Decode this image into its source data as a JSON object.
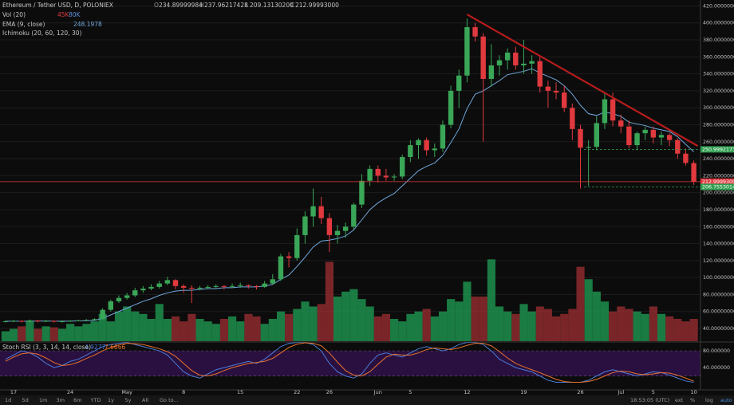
{
  "chart_data": [
    {
      "type": "candlestick",
      "title": "Ethereum / Tether USD, D, POLONIEX",
      "ohlc_labels": [
        [
          "O",
          "234.89999984"
        ],
        [
          "H",
          "237.96217428"
        ],
        [
          "L",
          "209.13130200"
        ],
        [
          "C",
          "212.99993000"
        ]
      ],
      "categories": [
        null,
        "17",
        null,
        null,
        null,
        null,
        null,
        null,
        "24",
        null,
        null,
        null,
        null,
        null,
        null,
        "May",
        null,
        null,
        null,
        null,
        null,
        null,
        "8",
        null,
        null,
        null,
        null,
        null,
        null,
        "15",
        null,
        null,
        null,
        null,
        null,
        null,
        "22",
        null,
        null,
        null,
        "26",
        null,
        null,
        null,
        null,
        null,
        "Jun",
        null,
        null,
        null,
        "5",
        null,
        null,
        null,
        null,
        null,
        null,
        "12",
        null,
        null,
        null,
        null,
        null,
        null,
        "19",
        null,
        null,
        null,
        null,
        null,
        null,
        "26",
        null,
        null,
        null,
        null,
        "Jul",
        null,
        null,
        null,
        "5",
        null,
        null,
        null,
        null,
        "10"
      ],
      "open": [
        48,
        48.5,
        49,
        48,
        49.5,
        48.5,
        49,
        48,
        48.5,
        49,
        49.5,
        50,
        51,
        62,
        72,
        76,
        79,
        85,
        87,
        89,
        93,
        97,
        90,
        88,
        87,
        88,
        89,
        90,
        89,
        90,
        91,
        90,
        89,
        93,
        98,
        125,
        123,
        150,
        172,
        184,
        170,
        150,
        155,
        160,
        186,
        214,
        228,
        220,
        218,
        219,
        242,
        256,
        262,
        250,
        252,
        280,
        320,
        338,
        395,
        384,
        334,
        350,
        356,
        365,
        350,
        352,
        355,
        325,
        320,
        318,
        300,
        275,
        253,
        254,
        282,
        310,
        285,
        278,
        256,
        270,
        274,
        265,
        268,
        262,
        246,
        234.89999984
      ],
      "high": [
        49.5,
        50,
        49.5,
        50.5,
        50,
        50,
        49.5,
        49.5,
        50,
        50.5,
        51,
        52,
        64,
        74,
        79,
        82,
        88,
        90,
        92,
        96,
        101,
        98,
        92,
        91,
        90,
        91,
        92,
        91,
        93,
        94,
        92,
        91,
        96,
        104,
        128,
        130,
        158,
        178,
        205,
        195,
        176,
        162,
        165,
        188,
        222,
        232,
        232,
        228,
        222,
        245,
        262,
        264,
        265,
        258,
        285,
        326,
        345,
        405,
        400,
        388,
        375,
        362,
        370,
        372,
        380,
        362,
        360,
        332,
        330,
        326,
        305,
        280,
        262,
        290,
        318,
        318,
        292,
        285,
        272,
        278,
        278,
        272,
        270,
        264,
        252,
        237.96217428
      ],
      "low": [
        47,
        47.5,
        47,
        47.5,
        47,
        47.5,
        47,
        47,
        48,
        48.5,
        49,
        49.5,
        50.5,
        60,
        70,
        74,
        77,
        82,
        85,
        87,
        91,
        86,
        82,
        70,
        85,
        86,
        87,
        86,
        88,
        88,
        87,
        86,
        88,
        92,
        96,
        112,
        120,
        140,
        160,
        163,
        130,
        140,
        147,
        156,
        182,
        208,
        212,
        214,
        214,
        216,
        236,
        240,
        244,
        242,
        248,
        276,
        300,
        330,
        378,
        260,
        325,
        338,
        345,
        345,
        340,
        340,
        318,
        300,
        310,
        295,
        262,
        205,
        208,
        250,
        275,
        278,
        270,
        252,
        250,
        262,
        258,
        256,
        255,
        240,
        232,
        209.131302
      ],
      "close": [
        48.5,
        49,
        48,
        49.5,
        48.5,
        49,
        48,
        48.5,
        49,
        49.5,
        50,
        51,
        62,
        72,
        76,
        79,
        85,
        87,
        89,
        93,
        97,
        90,
        88,
        87,
        88,
        89,
        90,
        89,
        90,
        91,
        90,
        89,
        93,
        98,
        125,
        123,
        150,
        172,
        184,
        170,
        150,
        155,
        160,
        186,
        214,
        228,
        220,
        218,
        219,
        242,
        256,
        262,
        250,
        252,
        280,
        320,
        338,
        395,
        384,
        334,
        350,
        356,
        365,
        350,
        352,
        355,
        325,
        320,
        318,
        300,
        275,
        253,
        254,
        282,
        310,
        285,
        278,
        256,
        270,
        274,
        265,
        268,
        262,
        246,
        235,
        212.99993
      ],
      "up_color": "#3aa657",
      "down_color": "#e0393e",
      "ylim": [
        25,
        427
      ],
      "yticks": [
        {
          "value": 40,
          "label": "40.00000000"
        },
        {
          "value": 60,
          "label": "60.00000000"
        },
        {
          "value": 80,
          "label": "80.00000000"
        },
        {
          "value": 100,
          "label": "100.00000000"
        },
        {
          "value": 120,
          "label": "120.00000000"
        },
        {
          "value": 140,
          "label": "140.00000000"
        },
        {
          "value": 160,
          "label": "160.00000000"
        },
        {
          "value": 180,
          "label": "180.00000000"
        },
        {
          "value": 200,
          "label": "200.00000000"
        },
        {
          "value": 220,
          "label": "220.00000000"
        },
        {
          "value": 240,
          "label": "240.00000000"
        },
        {
          "value": 260,
          "label": "260.00000000"
        },
        {
          "value": 280,
          "label": "280.00000000"
        },
        {
          "value": 300,
          "label": "300.00000000"
        },
        {
          "value": 320,
          "label": "320.00000000"
        },
        {
          "value": 340,
          "label": "340.00000000"
        },
        {
          "value": 360,
          "label": "360.00000000"
        },
        {
          "value": 380,
          "label": "380.00000000"
        },
        {
          "value": 400,
          "label": "400.00000000"
        },
        {
          "value": 420,
          "label": "420.00000000"
        }
      ],
      "grid": true,
      "ema": {
        "name": "EMA (9, close)",
        "value_label": "248.1978",
        "color": "#6fa8dc",
        "values": [
          48.5,
          48.6,
          48.5,
          48.7,
          48.7,
          48.8,
          48.6,
          48.6,
          48.7,
          48.9,
          49.1,
          49.5,
          52,
          56,
          60,
          64,
          68,
          72,
          75,
          79,
          82,
          84,
          85,
          85,
          86,
          87,
          87,
          88,
          88,
          89,
          89,
          89,
          90,
          92,
          98,
          103,
          113,
          124,
          136,
          143,
          144,
          146,
          149,
          156,
          168,
          180,
          188,
          194,
          199,
          208,
          217,
          226,
          231,
          235,
          244,
          259,
          275,
          299,
          316,
          320,
          326,
          332,
          339,
          341,
          343,
          346,
          341,
          337,
          333,
          326,
          316,
          303,
          293,
          291,
          295,
          293,
          290,
          283,
          281,
          279,
          276,
          274,
          272,
          266,
          257,
          248.1978
        ]
      },
      "volume": {
        "name": "Vol (20)",
        "legend_values": [
          "45K",
          "80K"
        ],
        "legend_colors": [
          "#e0393e",
          "#5b8fd8"
        ],
        "ylim": [
          0,
          270
        ],
        "up_color": "#1d8f4d",
        "down_color": "#8e2b2f",
        "values": [
          20,
          25,
          30,
          40,
          25,
          30,
          28,
          25,
          35,
          30,
          35,
          40,
          55,
          40,
          60,
          70,
          60,
          55,
          45,
          75,
          45,
          50,
          40,
          55,
          45,
          40,
          35,
          45,
          50,
          40,
          55,
          50,
          35,
          45,
          60,
          55,
          65,
          80,
          70,
          75,
          160,
          90,
          100,
          105,
          85,
          70,
          50,
          55,
          45,
          40,
          55,
          60,
          65,
          50,
          60,
          85,
          80,
          120,
          90,
          90,
          165,
          70,
          60,
          55,
          75,
          60,
          70,
          65,
          50,
          55,
          65,
          150,
          125,
          100,
          80,
          60,
          70,
          65,
          60,
          55,
          70,
          55,
          50,
          45,
          40,
          45
        ]
      },
      "ichimoku": {
        "name": "Ichimoku (20, 60, 120, 30)"
      },
      "price_lines": [
        {
          "value": 250.9992173,
          "label": "250.99921730",
          "color": "#2e9e4f",
          "style": "dashed"
        },
        {
          "value": 212.99993,
          "label": "212.99993000",
          "color": "#e0393e",
          "style": "solid"
        },
        {
          "value": 206.75530148,
          "label": "206.75530148",
          "color": "#2e9e4f",
          "style": "dashed"
        }
      ],
      "trendline": {
        "x": [
          57,
          85.5
        ],
        "y": [
          410,
          255
        ],
        "color": "#b71c1c"
      }
    },
    {
      "type": "line",
      "title": "Stoch RSI (3, 3, 14, 14, close)",
      "ylim": [
        -13,
        101
      ],
      "yticks": [
        {
          "value": 80,
          "label": "80.000000"
        },
        {
          "value": 40,
          "label": "40.000000"
        }
      ],
      "band": [
        20,
        80
      ],
      "band_color": "#2a1040",
      "series": [
        {
          "color": "#4a7bd8",
          "value_label": "4.9277",
          "values": [
            60,
            70,
            80,
            75,
            65,
            50,
            40,
            45,
            55,
            60,
            70,
            80,
            90,
            95,
            98,
            100,
            95,
            90,
            85,
            80,
            70,
            50,
            30,
            20,
            15,
            25,
            35,
            40,
            45,
            50,
            55,
            50,
            60,
            75,
            90,
            98,
            100,
            100,
            95,
            80,
            50,
            30,
            20,
            15,
            25,
            50,
            70,
            75,
            70,
            65,
            75,
            85,
            90,
            85,
            80,
            85,
            95,
            100,
            100,
            95,
            80,
            60,
            50,
            40,
            35,
            30,
            20,
            10,
            5,
            5,
            5,
            5,
            10,
            20,
            30,
            35,
            30,
            25,
            20,
            25,
            30,
            28,
            22,
            15,
            8,
            4.9277
          ]
        },
        {
          "color": "#e8712c",
          "value_label": "7.6666",
          "values": [
            55,
            65,
            73,
            75,
            72,
            63,
            52,
            45,
            47,
            53,
            62,
            70,
            80,
            88,
            94,
            98,
            97,
            95,
            90,
            85,
            78,
            67,
            50,
            33,
            22,
            20,
            25,
            33,
            40,
            45,
            50,
            52,
            55,
            62,
            75,
            88,
            96,
            99,
            98,
            92,
            75,
            53,
            33,
            22,
            20,
            30,
            48,
            65,
            72,
            70,
            70,
            75,
            83,
            87,
            85,
            83,
            87,
            93,
            98,
            98,
            92,
            78,
            63,
            50,
            42,
            35,
            28,
            20,
            12,
            7,
            5,
            5,
            7,
            12,
            20,
            28,
            32,
            30,
            25,
            23,
            25,
            28,
            27,
            22,
            15,
            7.6666
          ]
        }
      ]
    }
  ],
  "toolbar": {
    "ranges": [
      "1d",
      "5d",
      "1m",
      "3m",
      "6m",
      "YTD",
      "1y",
      "5y",
      "All"
    ],
    "goto": "Go to...",
    "time": "18:53:05 (UTC)",
    "options": [
      "ext",
      "%",
      "log",
      "auto"
    ]
  }
}
